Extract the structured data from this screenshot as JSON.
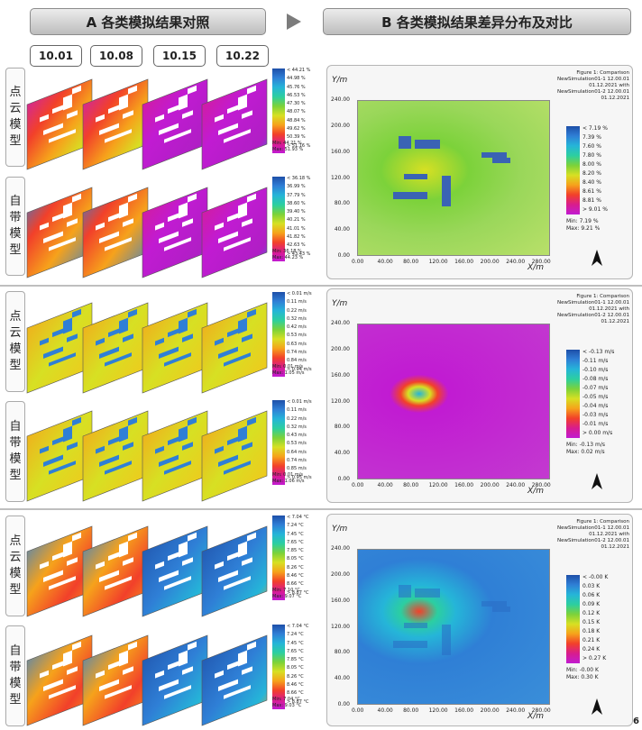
{
  "header": {
    "left_title": "A 各类模拟结果对照",
    "right_title": "B 各类模拟结果差异分布及对比"
  },
  "dates": [
    "10.01",
    "10.08",
    "10.15",
    "10.22"
  ],
  "row_labels": {
    "point_cloud": [
      "点",
      "云",
      "模",
      "型"
    ],
    "builtin": [
      "自",
      "带",
      "模",
      "型"
    ]
  },
  "sections": [
    {
      "id": "humidity",
      "legend_top": {
        "ticks": [
          "< 44.21 %",
          "44.98 %",
          "45.76 %",
          "46.53 %",
          "47.30 %",
          "48.07 %",
          "48.84 %",
          "49.62 %",
          "50.39 %",
          "> 51.16 %"
        ],
        "min": "Min: 44.21 %",
        "max": "Max: 51.93 %"
      },
      "legend_bottom": {
        "ticks": [
          "< 36.18 %",
          "36.99 %",
          "37.79 %",
          "38.60 %",
          "39.40 %",
          "40.21 %",
          "41.01 %",
          "41.82 %",
          "42.63 %",
          "> 43.43 %"
        ],
        "min": "Min: 36.18 %",
        "max": "Max: 44.23 %"
      },
      "diff": {
        "figure_title": [
          "Figure 1: Comparison",
          "NewSimulation01-1 12.00.01",
          "01.12.2021 with",
          "NewSimulation01-2 12.00.01",
          "01.12.2021"
        ],
        "ticks": [
          "< 7.19 %",
          "7.39 %",
          "7.60 %",
          "7.80 %",
          "8.00 %",
          "8.20 %",
          "8.40 %",
          "8.61 %",
          "8.81 %",
          "> 9.01 %"
        ],
        "min": "Min: 7.19 %",
        "max": "Max: 9.21 %"
      }
    },
    {
      "id": "wind",
      "legend_top": {
        "ticks": [
          "< 0.01 m/s",
          "0.11 m/s",
          "0.22 m/s",
          "0.32 m/s",
          "0.42 m/s",
          "0.53 m/s",
          "0.63 m/s",
          "0.74 m/s",
          "0.84 m/s",
          "> 0.94 m/s"
        ],
        "min": "Min: 0.01 m/s",
        "max": "Max: 1.05 m/s"
      },
      "legend_bottom": {
        "ticks": [
          "< 0.01 m/s",
          "0.11 m/s",
          "0.22 m/s",
          "0.32 m/s",
          "0.43 m/s",
          "0.53 m/s",
          "0.64 m/s",
          "0.74 m/s",
          "0.85 m/s",
          "> 0.95 m/s"
        ],
        "min": "Min: 0.01 m/s",
        "max": "Max: 1.06 m/s"
      },
      "diff": {
        "figure_title": [
          "Figure 1: Comparison",
          "NewSimulation01-1 12.00.01",
          "01.12.2021 with",
          "NewSimulation01-2 12.00.01",
          "01.12.2021"
        ],
        "ticks": [
          "< -0.13 m/s",
          "-0.11 m/s",
          "-0.10 m/s",
          "-0.08 m/s",
          "-0.07 m/s",
          "-0.05 m/s",
          "-0.04 m/s",
          "-0.03 m/s",
          "-0.01 m/s",
          "> 0.00 m/s"
        ],
        "min": "Min: -0.13 m/s",
        "max": "Max: 0.02 m/s"
      }
    },
    {
      "id": "temperature",
      "legend_top": {
        "ticks": [
          "< 7.04 °C",
          "7.24 °C",
          "7.45 °C",
          "7.65 °C",
          "7.85 °C",
          "8.05 °C",
          "8.26 °C",
          "8.46 °C",
          "8.66 °C",
          "> 8.87 °C"
        ],
        "min": "Min: 7.10 °C",
        "max": "Max: 9.07 °C"
      },
      "legend_bottom": {
        "ticks": [
          "< 7.04 °C",
          "7.24 °C",
          "7.45 °C",
          "7.65 °C",
          "7.85 °C",
          "8.05 °C",
          "8.26 °C",
          "8.46 °C",
          "8.66 °C",
          "> 8.87 °C"
        ],
        "min": "Min: 7.04 °C",
        "max": "Max: 9.03 °C"
      },
      "diff": {
        "figure_title": [
          "Figure 1: Comparison",
          "NewSimulation01-1 12.00.01",
          "01.12.2021 with",
          "NewSimulation01-2 12.00.01",
          "01.12.2021"
        ],
        "ticks": [
          "< -0.00 K",
          "0.03 K",
          "0.06 K",
          "0.09 K",
          "0.12 K",
          "0.15 K",
          "0.18 K",
          "0.21 K",
          "0.24 K",
          "> 0.27 K"
        ],
        "min": "Min: -0.00 K",
        "max": "Max: 0.30 K"
      }
    }
  ],
  "diff_axes": {
    "y_label": "Y/m",
    "x_label": "X/m",
    "y_ticks": [
      "240.00",
      "200.00",
      "160.00",
      "120.00",
      "80.00",
      "40.00",
      "0.00"
    ],
    "x_ticks": [
      "0.00",
      "40.00",
      "80.00",
      "120.00",
      "160.00",
      "200.00",
      "240.00",
      "280.00"
    ]
  },
  "page_number": "6",
  "colors": {
    "scale": [
      "#1e4fa8",
      "#2f7fd6",
      "#25b5d8",
      "#2ccfa0",
      "#7cd23a",
      "#d7e023",
      "#f6a21b",
      "#f2402a",
      "#d81c8e",
      "#c11bd2"
    ]
  }
}
